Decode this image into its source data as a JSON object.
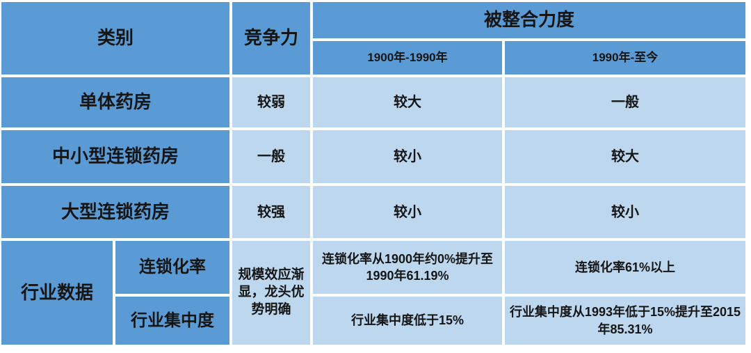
{
  "chart_data": {
    "type": "table",
    "header": {
      "category": "类别",
      "competitiveness": "竞争力",
      "integration": "被整合力度",
      "period1": "1900年-1990年",
      "period2": "1990年-至今"
    },
    "rows": [
      {
        "label": "单体药房",
        "competitiveness": "较弱",
        "period1": "较大",
        "period2": "一般"
      },
      {
        "label": "中小型连锁药房",
        "competitiveness": "一般",
        "period1": "较小",
        "period2": "较大"
      },
      {
        "label": "大型连锁药房",
        "competitiveness": "较强",
        "period1": "较小",
        "period2": "较小"
      }
    ],
    "industry": {
      "label": "行业数据",
      "competitiveness": "规模效应渐显，龙头优势明确",
      "sub_rows": [
        {
          "label": "连锁化率",
          "period1": "连锁化率从1900年约0%提升至1990年61.19%",
          "period2": "连锁化率61%以上"
        },
        {
          "label": "行业集中度",
          "period1": "行业集中度低于15%",
          "period2": "行业集中度从1993年低于15%提升至2015年85.31%"
        }
      ]
    },
    "layout_hint": "grid table, header and label cells dark blue, data cells light blue, white gridlines"
  },
  "colors": {
    "header_blue": "#5B9BD5",
    "cell_blue": "#BDD7EE",
    "gridline": "#FFFFFF",
    "text": "#151515"
  }
}
